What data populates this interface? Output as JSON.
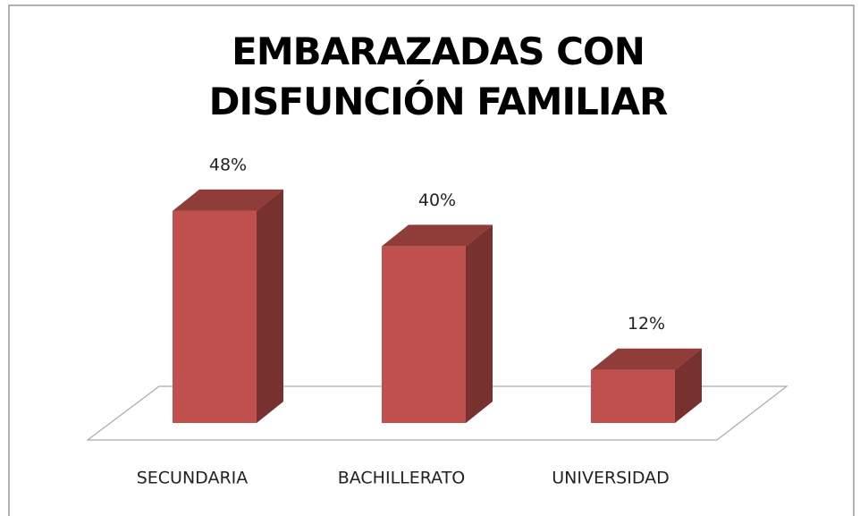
{
  "chart_data": {
    "type": "bar3d",
    "title": "EMBARAZADAS CON  DISFUNCIÓN FAMILIAR",
    "categories": [
      "SECUNDARIA",
      "BACHILLERATO",
      "UNIVERSIDAD"
    ],
    "values": [
      48,
      40,
      12
    ],
    "value_labels": [
      "48%",
      "40%",
      "12%"
    ],
    "color": "#c0504d"
  }
}
